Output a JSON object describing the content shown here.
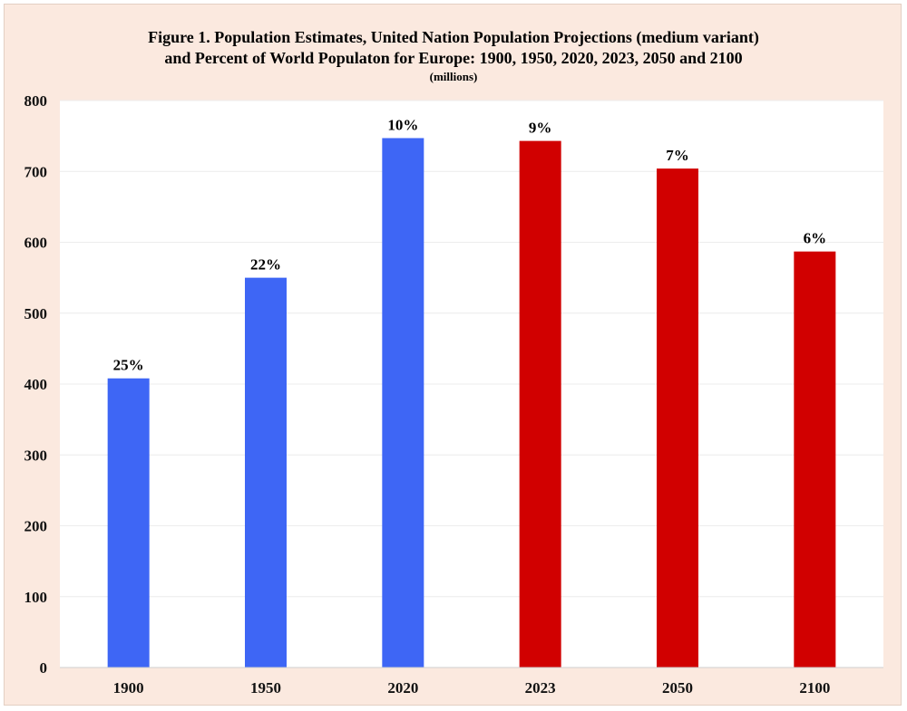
{
  "chart_data": {
    "type": "bar",
    "title": "Figure 1. Population Estimates, United Nation Population Projections (medium variant)",
    "title_line2": "and Percent of World Populaton for Europe: 1900, 1950, 2020, 2023, 2050 and 2100",
    "subtitle": "(millions)",
    "xlabel": "",
    "ylabel": "",
    "ylim": [
      0,
      800
    ],
    "yticks": [
      "0",
      "100",
      "200",
      "300",
      "400",
      "500",
      "600",
      "700",
      "800"
    ],
    "grid": true,
    "categories": [
      "1900",
      "1950",
      "2020",
      "2023",
      "2050",
      "2100"
    ],
    "values": [
      408,
      550,
      747,
      743,
      704,
      587
    ],
    "labels": [
      "25%",
      "22%",
      "10%",
      "9%",
      "7%",
      "6%"
    ],
    "colors": [
      "#3e66f5",
      "#3e66f5",
      "#3e66f5",
      "#d10000",
      "#d10000",
      "#d10000"
    ]
  }
}
